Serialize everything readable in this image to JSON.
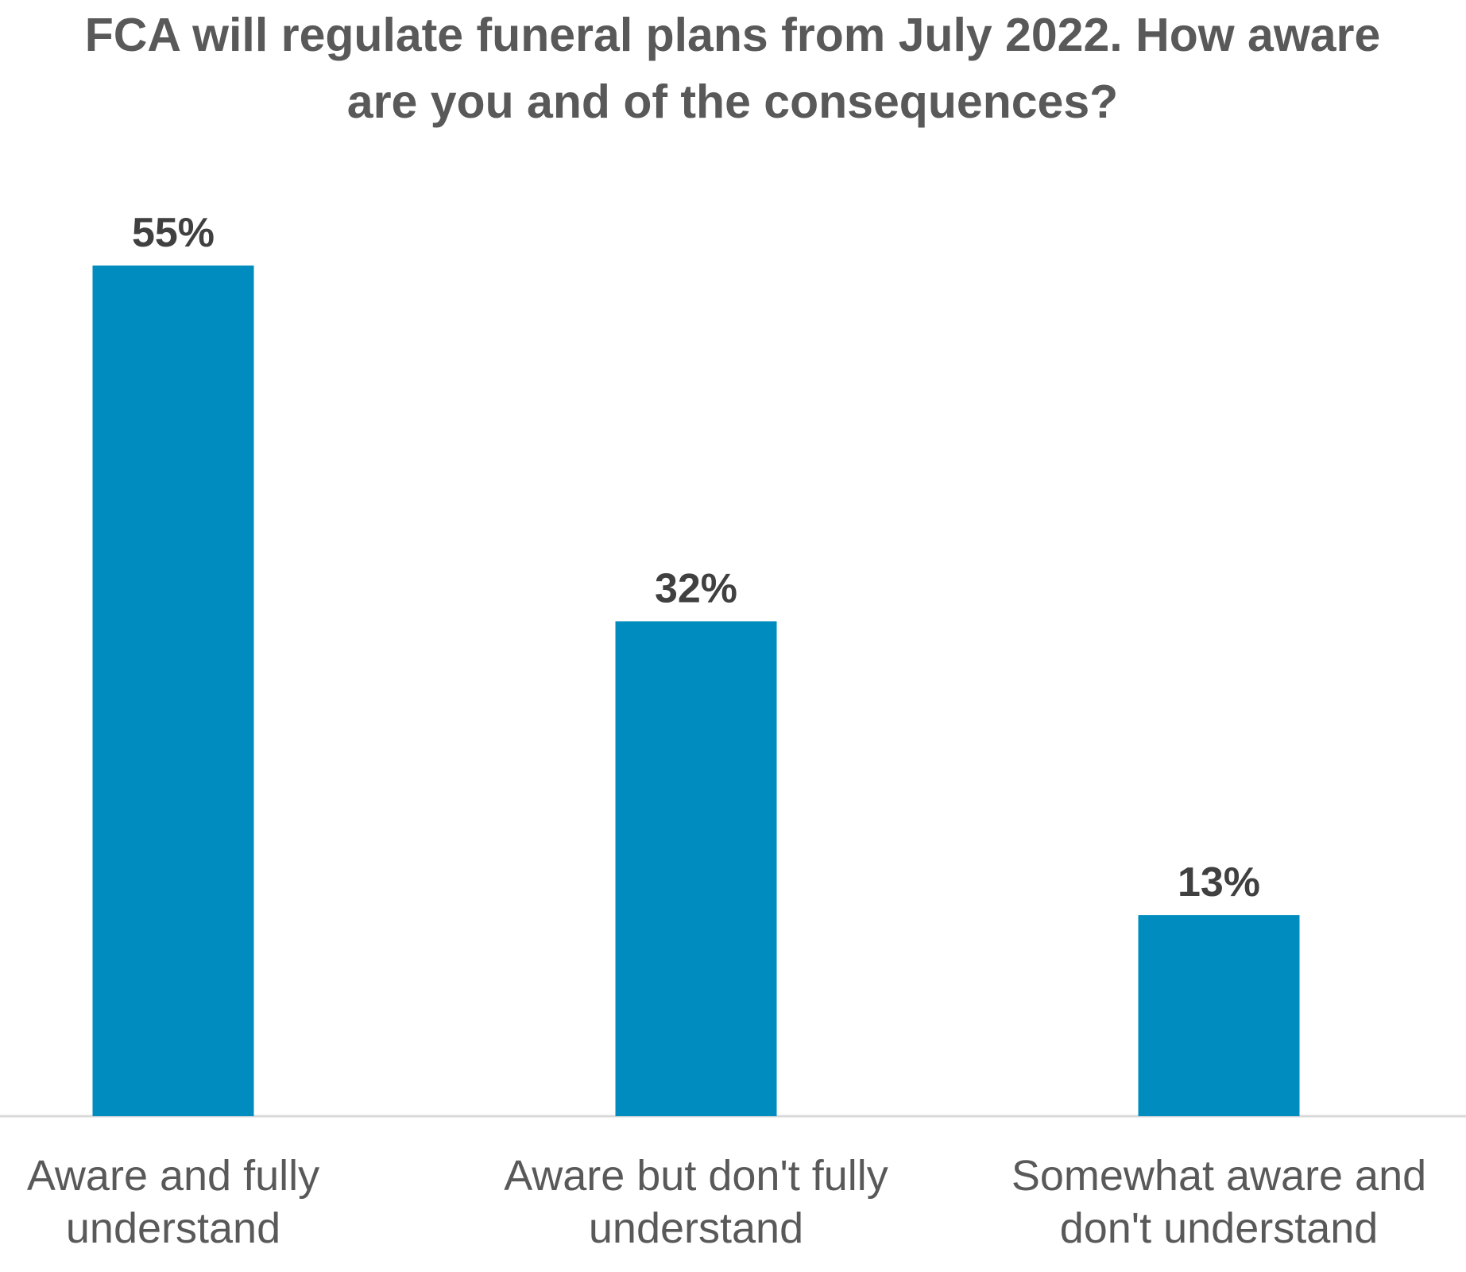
{
  "chart_data": {
    "type": "bar",
    "title": "FCA will regulate funeral plans from July 2022. How aware are you and of the consequences?",
    "categories": [
      "Aware and fully understand",
      "Aware but don't fully understand",
      "Somewhat aware and don't understand"
    ],
    "values": [
      55,
      32,
      13
    ],
    "value_labels": [
      "55%",
      "32%",
      "13%"
    ],
    "color": "#008cbf"
  }
}
